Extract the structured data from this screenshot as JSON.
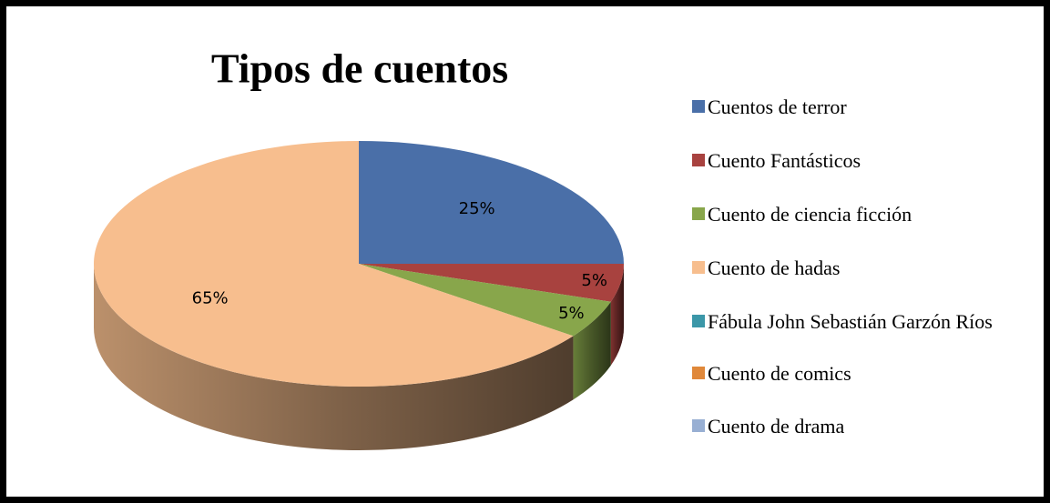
{
  "chart_data": {
    "type": "pie",
    "title": "Tipos de cuentos",
    "categories": [
      "Cuentos de terror",
      "Cuento Fantásticos",
      "Cuento de ciencia ficción",
      "Cuento de hadas",
      "Fábula John Sebastián Garzón Ríos",
      "Cuento de comics",
      "Cuento de drama"
    ],
    "values": [
      25,
      5,
      5,
      65,
      0,
      0,
      0
    ],
    "value_labels": [
      "25%",
      "5%",
      "5%",
      "65%",
      null,
      null,
      null
    ],
    "colors": [
      "#4a6fa8",
      "#a8423f",
      "#88a64b",
      "#f7be8e",
      "#3b97a8",
      "#e0883a",
      "#98afd3"
    ],
    "legend": "right"
  }
}
